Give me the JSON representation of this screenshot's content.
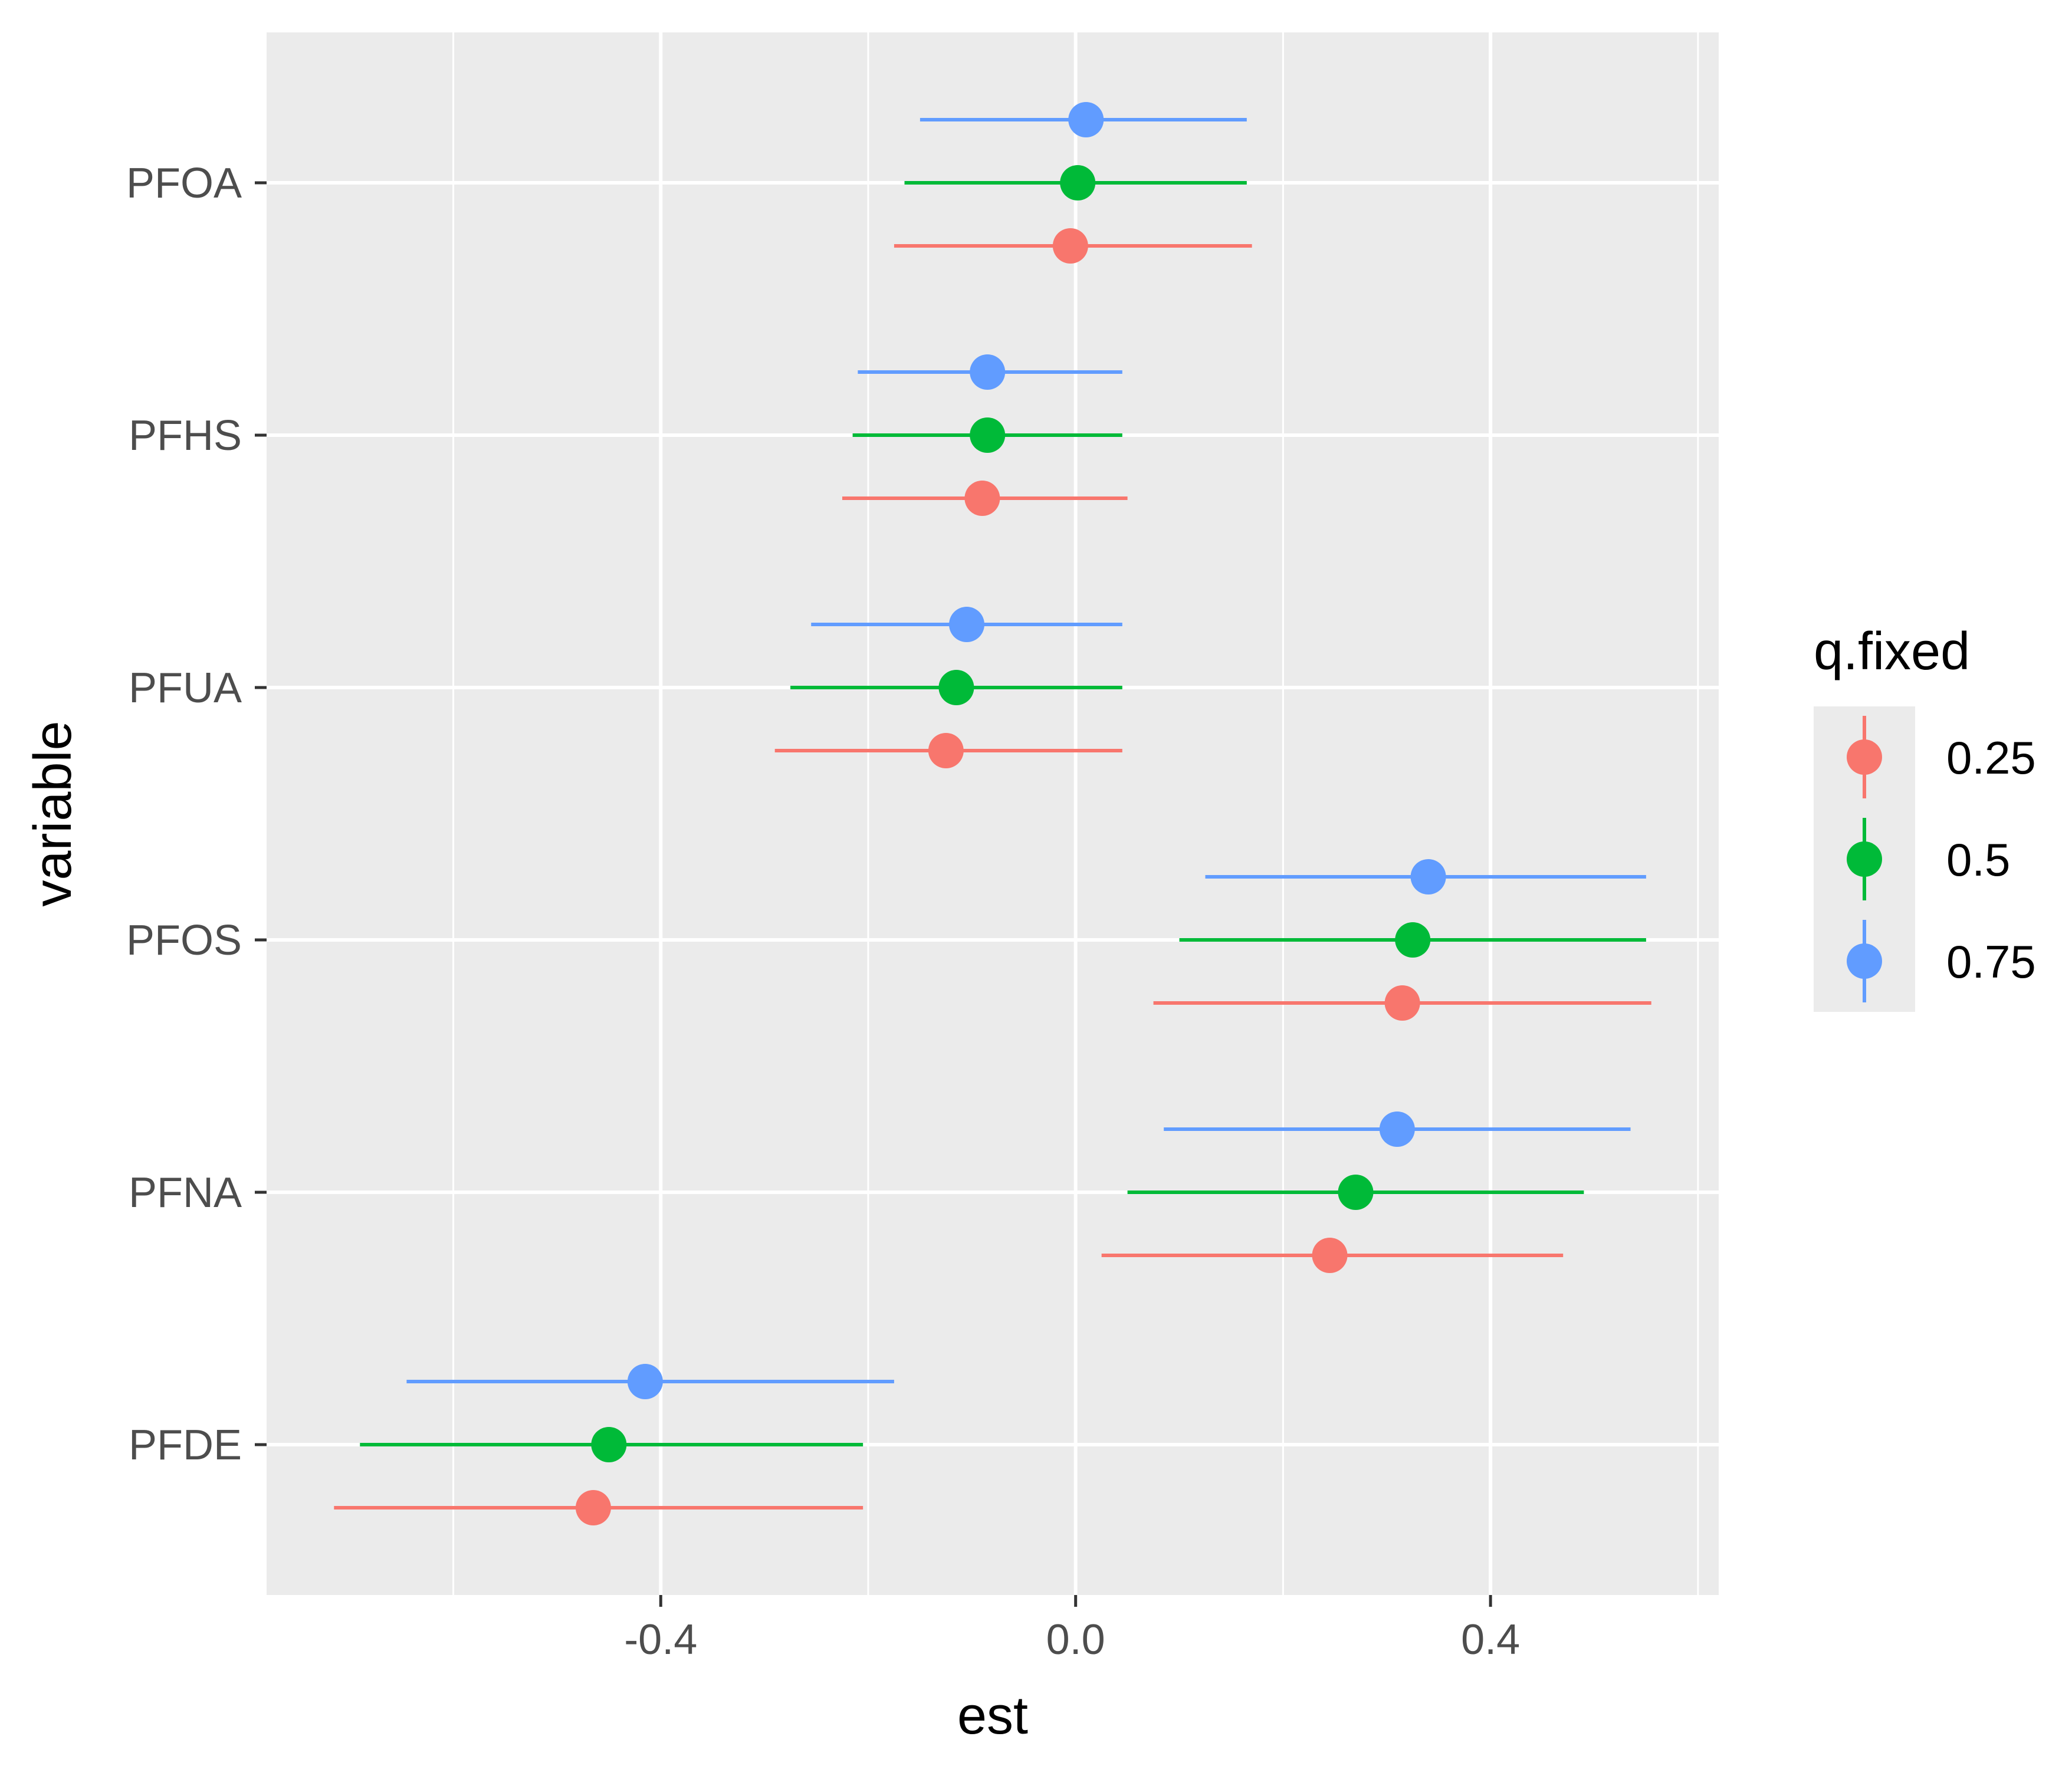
{
  "chart_data": {
    "type": "scatter",
    "title": "",
    "xlabel": "est",
    "ylabel": "variable",
    "xlim": [
      -0.78,
      0.62
    ],
    "x_ticks": [
      -0.4,
      0.0,
      0.4
    ],
    "x_tick_labels": [
      "-0.4",
      "0.0",
      "0.4"
    ],
    "grid": true,
    "categories": [
      "PFOA",
      "PFHS",
      "PFUA",
      "PFOS",
      "PFNA",
      "PFDE"
    ],
    "legend": {
      "title": "q.fixed",
      "position": "right",
      "entries": [
        "0.25",
        "0.5",
        "0.75"
      ]
    },
    "series": [
      {
        "name": "0.25",
        "color": "#F8766D",
        "est": [
          -0.005,
          -0.09,
          -0.125,
          0.315,
          0.245,
          -0.465
        ],
        "lower": [
          -0.175,
          -0.225,
          -0.29,
          0.075,
          0.025,
          -0.715
        ],
        "upper": [
          0.17,
          0.05,
          0.045,
          0.555,
          0.47,
          -0.205
        ]
      },
      {
        "name": "0.5",
        "color": "#00BA38",
        "est": [
          0.002,
          -0.085,
          -0.115,
          0.325,
          0.27,
          -0.45
        ],
        "lower": [
          -0.165,
          -0.215,
          -0.275,
          0.1,
          0.05,
          -0.69
        ],
        "upper": [
          0.165,
          0.045,
          0.045,
          0.55,
          0.49,
          -0.205
        ]
      },
      {
        "name": "0.75",
        "color": "#619CFF",
        "est": [
          0.01,
          -0.085,
          -0.105,
          0.34,
          0.31,
          -0.415
        ],
        "lower": [
          -0.15,
          -0.21,
          -0.255,
          0.125,
          0.085,
          -0.645
        ],
        "upper": [
          0.165,
          0.045,
          0.045,
          0.55,
          0.535,
          -0.175
        ]
      }
    ]
  }
}
